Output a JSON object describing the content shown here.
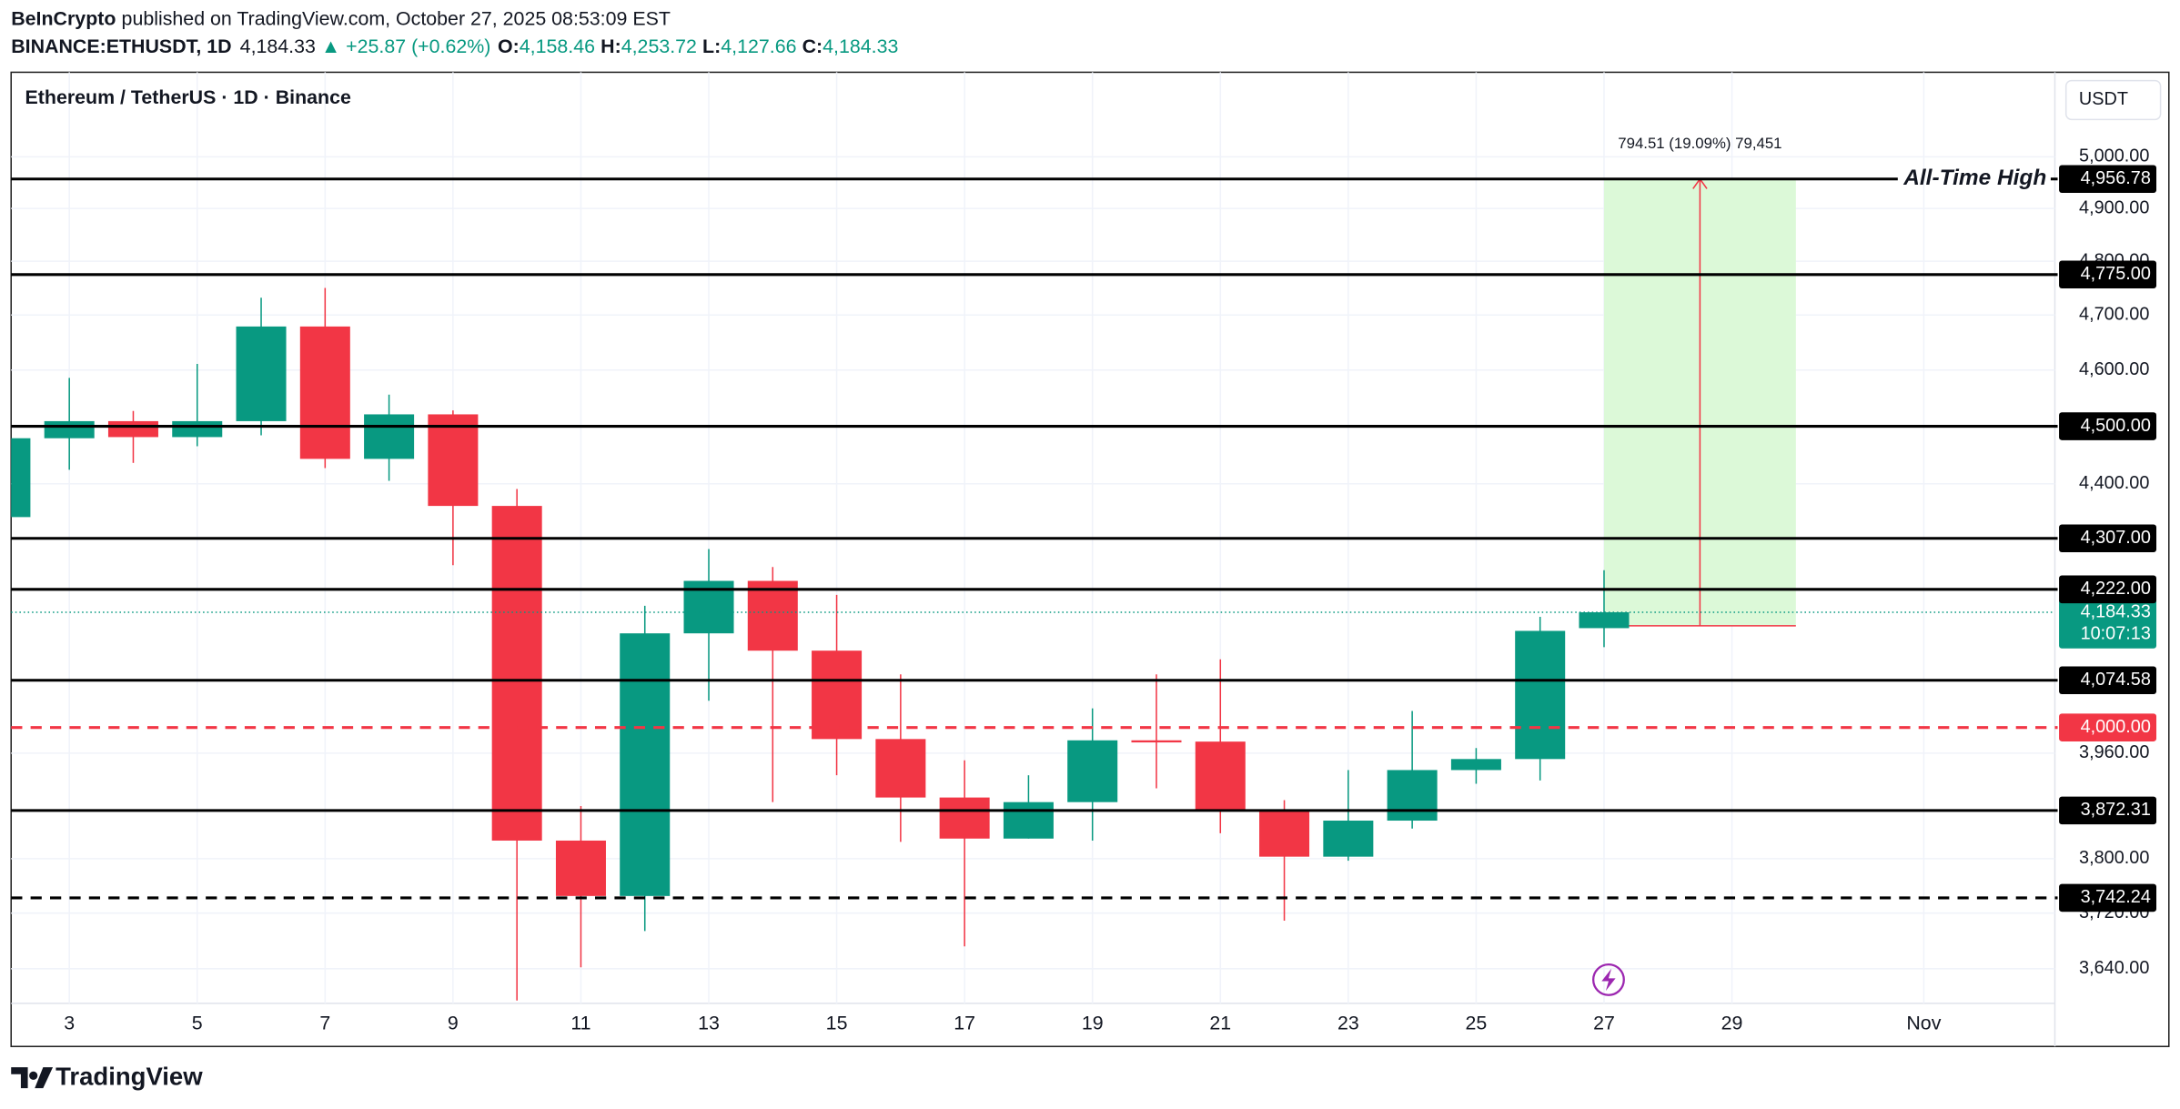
{
  "header": {
    "publisher": "BeInCrypto",
    "published": "published on TradingView.com, October 27, 2025 08:53:09 EST",
    "symbol": "BINANCE:ETHUSDT, 1D",
    "last": "4,184.33",
    "change": "▲ +25.87 (+0.62%)",
    "ohlc": [
      {
        "key": "O:",
        "value": "4,158.46"
      },
      {
        "key": "H:",
        "value": "4,253.72"
      },
      {
        "key": "L:",
        "value": "4,127.66"
      },
      {
        "key": "C:",
        "value": "4,184.33"
      }
    ]
  },
  "footer": {
    "brand": "TradingView"
  },
  "chart_data": {
    "type": "candlestick",
    "title": "Ethereum / TetherUS · 1D · Binance",
    "currency": "USDT",
    "x": [
      2,
      3,
      4,
      5,
      6,
      7,
      8,
      9,
      10,
      11,
      12,
      13,
      14,
      15,
      16,
      17,
      18,
      19,
      20,
      21,
      22,
      23,
      24,
      25,
      26,
      27
    ],
    "open": [
      4343,
      4479,
      4509,
      4481,
      4509,
      4679,
      4443,
      4521,
      4362,
      3827,
      3745,
      4150,
      4236,
      4122,
      3982,
      3892,
      3830,
      3885,
      3980,
      3978,
      3871,
      3803,
      3857,
      3934,
      3951,
      4158.46
    ],
    "high": [
      4485,
      4586,
      4527,
      4611,
      4732,
      4750,
      4556,
      4528,
      4391,
      3879,
      4195,
      4289,
      4259,
      4213,
      4084,
      3949,
      3926,
      4030,
      4084,
      4108,
      3888,
      3934,
      4026,
      3968,
      4177,
      4253.72
    ],
    "low": [
      4340,
      4424,
      4436,
      4465,
      4484,
      4427,
      4405,
      4262,
      3595,
      3642,
      3694,
      4042,
      3885,
      3926,
      3825,
      3672,
      3830,
      3827,
      3906,
      3838,
      3709,
      3797,
      3845,
      3913,
      3918,
      4127.66
    ],
    "close": [
      4479,
      4509,
      4481,
      4509,
      4679,
      4443,
      4521,
      4362,
      3827,
      3745,
      4150,
      4236,
      4122,
      3982,
      3892,
      3830,
      3885,
      3980,
      3978,
      3871,
      3803,
      3857,
      3934,
      3951,
      4154,
      4184.33
    ],
    "up_color": "#089981",
    "down_color": "#f23645",
    "log": true,
    "grid": true,
    "xlim": [
      2.09,
      34.05
    ],
    "xticks": [
      3,
      5,
      7,
      9,
      11,
      13,
      15,
      17,
      19,
      21,
      23,
      25,
      27,
      29,
      {
        "value": 32,
        "label": "Nov"
      }
    ],
    "ylim": [
      3591,
      5168
    ],
    "yticks": [
      {
        "value": 5000,
        "label": "5,000.00"
      },
      {
        "value": 4900,
        "label": "4,900.00"
      },
      {
        "value": 4800,
        "label": "4,800.00"
      },
      {
        "value": 4700,
        "label": "4,700.00"
      },
      {
        "value": 4600,
        "label": "4,600.00"
      },
      {
        "value": 4400,
        "label": "4,400.00"
      },
      {
        "value": 3960,
        "label": "3,960.00"
      },
      {
        "value": 3800,
        "label": "3,800.00"
      },
      {
        "value": 3720,
        "label": "3,720.00"
      },
      {
        "value": 3640,
        "label": "3,640.00"
      }
    ],
    "levels": [
      {
        "value": 4956.78,
        "label": "4,956.78",
        "color": "#000000",
        "style": "solid",
        "note": "All-Time High"
      },
      {
        "value": 4775,
        "label": "4,775.00",
        "color": "#000000",
        "style": "solid"
      },
      {
        "value": 4500,
        "label": "4,500.00",
        "color": "#000000",
        "style": "solid"
      },
      {
        "value": 4307,
        "label": "4,307.00",
        "color": "#000000",
        "style": "solid"
      },
      {
        "value": 4222,
        "label": "4,222.00",
        "color": "#000000",
        "style": "solid"
      },
      {
        "value": 4074.58,
        "label": "4,074.58",
        "color": "#000000",
        "style": "solid"
      },
      {
        "value": 4000,
        "label": "4,000.00",
        "color": "#f23645",
        "style": "dashed"
      },
      {
        "value": 3872.31,
        "label": "3,872.31",
        "color": "#000000",
        "style": "solid"
      },
      {
        "value": 3742.24,
        "label": "3,742.24",
        "color": "#000000",
        "style": "dashed"
      }
    ],
    "last_price": {
      "value": 4184.33,
      "label": "4,184.33",
      "countdown": "10:07:13",
      "color": "#089981"
    },
    "measure": {
      "x": [
        27,
        30
      ],
      "y": [
        4162.27,
        4956.78
      ],
      "label": "794.51 (19.09%) 79,451",
      "color": "#f23645",
      "fill": "#dcf9d8"
    }
  }
}
